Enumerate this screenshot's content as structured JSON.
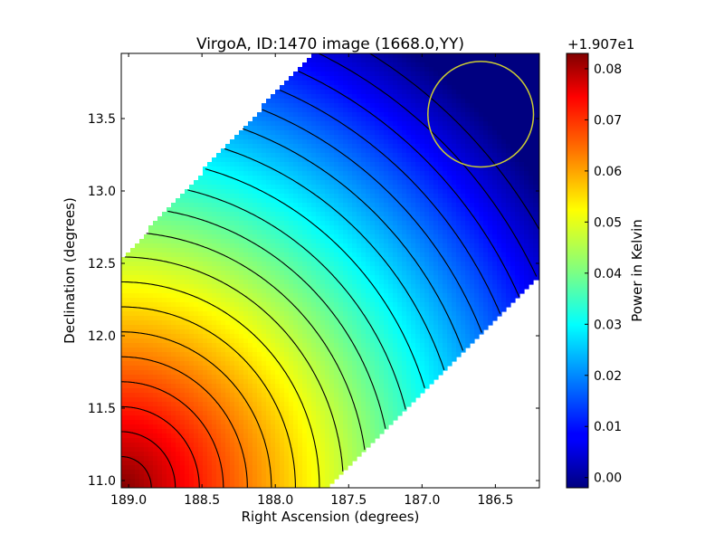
{
  "chart_data": {
    "type": "heatmap",
    "title": "VirgoA, ID:1470 image (1668.0,YY)",
    "xlabel": "Right Ascension (degrees)",
    "ylabel": "Declination (degrees)",
    "xlim": [
      189.05,
      186.2
    ],
    "ylim": [
      10.95,
      13.95
    ],
    "x_ticks": [
      189.0,
      188.5,
      188.0,
      187.5,
      187.0,
      186.5
    ],
    "x_tick_labels": [
      "189.0",
      "188.5",
      "188.0",
      "187.5",
      "187.0",
      "186.5"
    ],
    "y_ticks": [
      11.0,
      11.5,
      12.0,
      12.5,
      13.0,
      13.5
    ],
    "y_tick_labels": [
      "11.0",
      "11.5",
      "12.0",
      "12.5",
      "13.0",
      "13.5"
    ],
    "colorbar": {
      "label": "Power in Kelvin",
      "offset_label": "+1.907e1",
      "range": [
        -0.002,
        0.083
      ],
      "ticks": [
        0.0,
        0.01,
        0.02,
        0.03,
        0.04,
        0.05,
        0.06,
        0.07,
        0.08
      ],
      "tick_labels": [
        "0.00",
        "0.01",
        "0.02",
        "0.03",
        "0.04",
        "0.05",
        "0.06",
        "0.07",
        "0.08"
      ],
      "colormap": "jet"
    },
    "field": {
      "max_value": 0.083,
      "max_at": [
        189.05,
        10.95
      ],
      "min_value": -0.002,
      "min_at": [
        186.6,
        13.55
      ]
    },
    "coverage": {
      "upper_left_edge": [
        [
          189.05,
          12.53
        ],
        [
          187.75,
          13.95
        ]
      ],
      "lower_right_edge": [
        [
          187.65,
          10.95
        ],
        [
          186.2,
          12.4
        ]
      ]
    },
    "circle": {
      "center": [
        186.6,
        13.53
      ],
      "radius_ra_deg": 0.36,
      "color": "#cccc33"
    },
    "contour_levels": [
      0.002,
      0.006,
      0.01,
      0.014,
      0.018,
      0.022,
      0.026,
      0.03,
      0.034,
      0.038,
      0.042,
      0.046,
      0.05,
      0.054,
      0.058,
      0.062,
      0.066,
      0.07,
      0.074,
      0.078
    ],
    "grid": false
  }
}
